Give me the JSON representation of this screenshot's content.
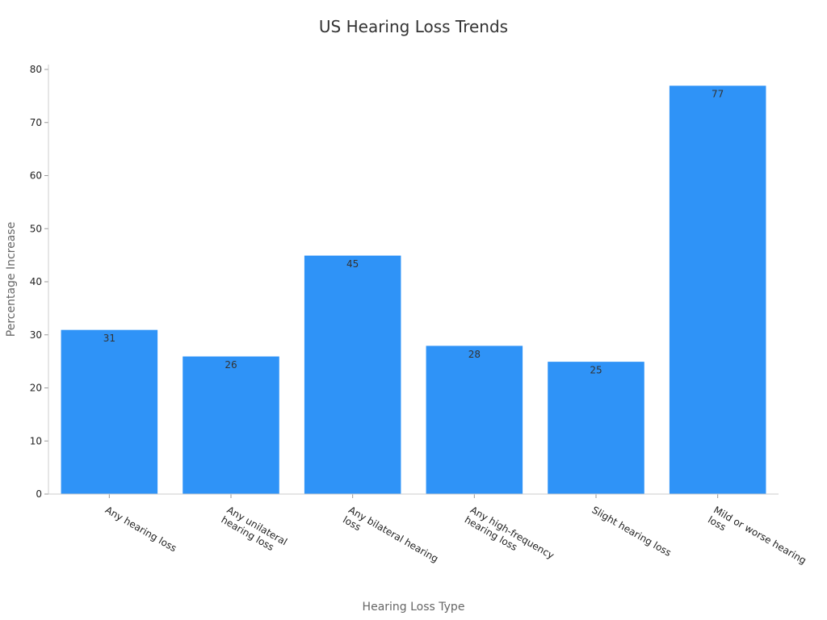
{
  "chart_data": {
    "type": "bar",
    "title": "US Hearing Loss Trends",
    "xlabel": "Hearing Loss Type",
    "ylabel": "Percentage Increase",
    "categories": [
      "Any hearing loss",
      "Any unilateral hearing loss",
      "Any bilateral hearing loss",
      "Any high-frequency hearing loss",
      "Slight hearing loss",
      "Mild or worse hearing loss"
    ],
    "values": [
      31,
      26,
      45,
      28,
      25,
      77
    ],
    "ylim": [
      0,
      80
    ],
    "yticks": [
      0,
      10,
      20,
      30,
      40,
      50,
      60,
      70,
      80
    ],
    "bar_color": "#2f93f7",
    "grid": false,
    "legend": "none"
  }
}
